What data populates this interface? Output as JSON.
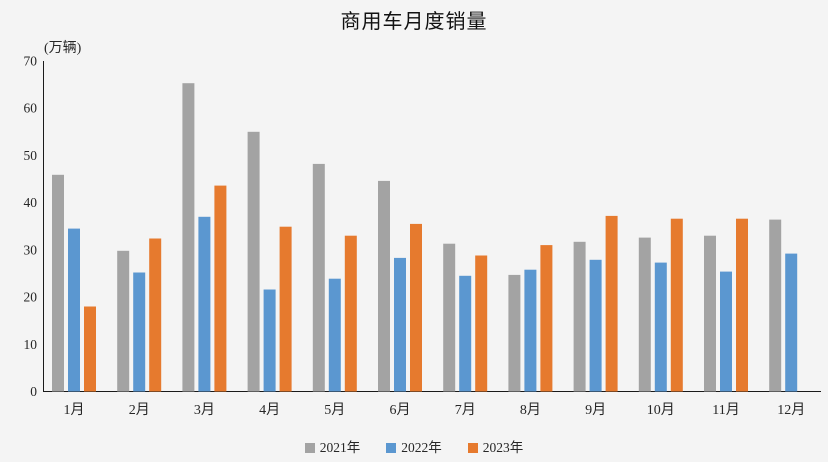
{
  "chart_data": {
    "type": "bar",
    "title": "商用车月度销量",
    "ylabel": "(万辆)",
    "xlabel": "",
    "categories": [
      "1月",
      "2月",
      "3月",
      "4月",
      "5月",
      "6月",
      "7月",
      "8月",
      "9月",
      "10月",
      "11月",
      "12月"
    ],
    "series": [
      {
        "name": "2021年",
        "color": "#a3a3a3",
        "values": [
          45.9,
          29.8,
          65.3,
          55.0,
          48.2,
          44.6,
          31.3,
          24.7,
          31.7,
          32.6,
          33.0,
          36.4
        ]
      },
      {
        "name": "2022年",
        "color": "#5b97d0",
        "values": [
          34.5,
          25.2,
          37.0,
          21.6,
          23.9,
          28.3,
          24.5,
          25.8,
          27.9,
          27.3,
          25.4,
          29.2
        ]
      },
      {
        "name": "2023年",
        "color": "#e67a2e",
        "values": [
          18.0,
          32.4,
          43.6,
          34.9,
          33.0,
          35.5,
          28.8,
          31.0,
          37.2,
          36.6,
          36.6,
          null
        ]
      }
    ],
    "ylim": [
      0,
      70
    ],
    "ytick_step": 10,
    "grid": false,
    "legend_position": "bottom",
    "axis_color": "#1a1a1a",
    "tick_label_color": "#262626"
  }
}
